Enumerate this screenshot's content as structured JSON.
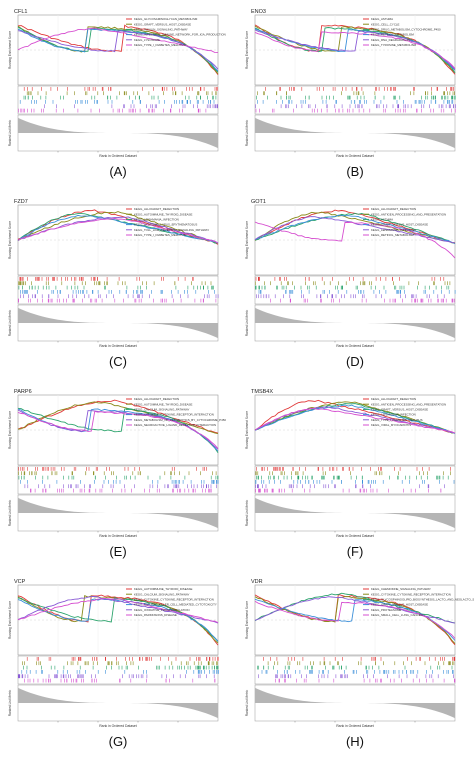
{
  "figure": {
    "panels": [
      {
        "id": "A",
        "letter": "(A)",
        "gene": "CFL1"
      },
      {
        "id": "B",
        "letter": "(B)",
        "gene": "ENO3"
      },
      {
        "id": "C",
        "letter": "(C)",
        "gene": "FZD7"
      },
      {
        "id": "D",
        "letter": "(D)",
        "gene": "GOT1"
      },
      {
        "id": "E",
        "letter": "(E)",
        "gene": "PARP6"
      },
      {
        "id": "F",
        "letter": "(F)",
        "gene": "TMSB4X"
      },
      {
        "id": "G",
        "letter": "(G)",
        "gene": "VCP"
      },
      {
        "id": "H",
        "letter": "(H)",
        "gene": "VDR"
      }
    ],
    "common_labels": {
      "ylabel_top": "Running Enrichment Score",
      "ylabel_bottom": "Ranked List Metric",
      "xlabel": "Rank in Ordered Dataset"
    }
  },
  "chart_data": [
    {
      "type": "line",
      "panel": "A",
      "title": "CFL1",
      "xlabel": "Rank in Ordered Dataset",
      "ylabel": "Running Enrichment Score",
      "grid": true,
      "legend_position": "top-right",
      "series": [
        {
          "name": "KEGG_GLYCOSAMINOGLYCAN_METABOLISM",
          "color": "#e03a3a",
          "shape": "neg"
        },
        {
          "name": "KEGG_GRAFT_VERSUS_HOST_DISEASE",
          "color": "#8a8a1a",
          "shape": "neg"
        },
        {
          "name": "KEGG_INSULIN_SIGNALING_PATHWAY",
          "color": "#2aa36b",
          "shape": "neg"
        },
        {
          "name": "KEGG_INTESTINAL_IMMUNE_NETWORK_FOR_IGA_PRODUCTION",
          "color": "#3b8fd9",
          "shape": "neg"
        },
        {
          "name": "KEGG_LYSOSOME",
          "color": "#8a5bd6",
          "shape": "neg"
        },
        {
          "name": "KEGG_TYPE_I_DIABETES_MELLITUS",
          "color": "#d64fd0",
          "shape": "pos"
        }
      ]
    },
    {
      "type": "line",
      "panel": "B",
      "title": "ENO3",
      "xlabel": "Rank in Ordered Dataset",
      "ylabel": "Running Enrichment Score",
      "grid": true,
      "legend_position": "top-right",
      "series": [
        {
          "name": "KEGG_ASTHMA",
          "color": "#e03a3a",
          "shape": "neg"
        },
        {
          "name": "KEGG_CELL_CYCLE",
          "color": "#8a8a1a",
          "shape": "neg"
        },
        {
          "name": "KEGG_DRUG_METABOLISM_CYTOCHROME_P450",
          "color": "#2aa36b",
          "shape": "neg"
        },
        {
          "name": "KEGG_RETINOL_METABOLISM",
          "color": "#3b8fd9",
          "shape": "neg"
        },
        {
          "name": "KEGG_RNA_DEGRADATION",
          "color": "#8a5bd6",
          "shape": "neg"
        },
        {
          "name": "KEGG_TYROSINE_METABOLISM",
          "color": "#d64fd0",
          "shape": "neg"
        }
      ]
    },
    {
      "type": "line",
      "panel": "C",
      "title": "FZD7",
      "xlabel": "Rank in Ordered Dataset",
      "ylabel": "Running Enrichment Score",
      "grid": true,
      "legend_position": "top-right",
      "series": [
        {
          "name": "KEGG_ALLOGRAFT_REJECTION",
          "color": "#e03a3a",
          "shape": "pos"
        },
        {
          "name": "KEGG_AUTOIMMUNE_THYROID_DISEASE",
          "color": "#8a8a1a",
          "shape": "pos"
        },
        {
          "name": "KEGG_LEISHMANIA_INFECTION",
          "color": "#2aa36b",
          "shape": "pos"
        },
        {
          "name": "KEGG_SYSTEMIC_LUPUS_ERYTHEMATOSUS",
          "color": "#3b8fd9",
          "shape": "pos"
        },
        {
          "name": "KEGG_TOLL_LIKE_RECEPTOR_SIGNALING_PATHWAY",
          "color": "#8a5bd6",
          "shape": "pos"
        },
        {
          "name": "KEGG_TYPE_I_DIABETES_MELLITUS",
          "color": "#d64fd0",
          "shape": "pos"
        }
      ]
    },
    {
      "type": "line",
      "panel": "D",
      "title": "GOT1",
      "xlabel": "Rank in Ordered Dataset",
      "ylabel": "Running Enrichment Score",
      "grid": true,
      "legend_position": "top-right",
      "series": [
        {
          "name": "KEGG_ALLOGRAFT_REJECTION",
          "color": "#e03a3a",
          "shape": "pos"
        },
        {
          "name": "KEGG_ANTIGEN_PROCESSING_AND_PRESENTATION",
          "color": "#8a8a1a",
          "shape": "pos"
        },
        {
          "name": "KEGG_ASTHMA",
          "color": "#2aa36b",
          "shape": "pos"
        },
        {
          "name": "KEGG_GRAFT_VERSUS_HOST_DISEASE",
          "color": "#3b8fd9",
          "shape": "pos"
        },
        {
          "name": "KEGG_LEISHMANIA_INFECTION",
          "color": "#8a5bd6",
          "shape": "pos"
        },
        {
          "name": "KEGG_RETINOL_METABOLISM",
          "color": "#d64fd0",
          "shape": "neg"
        }
      ]
    },
    {
      "type": "line",
      "panel": "E",
      "title": "PARP6",
      "xlabel": "Rank in Ordered Dataset",
      "ylabel": "Running Enrichment Score",
      "grid": true,
      "legend_position": "top-right",
      "series": [
        {
          "name": "KEGG_ALLOGRAFT_REJECTION",
          "color": "#e03a3a",
          "shape": "pos"
        },
        {
          "name": "KEGG_AUTOIMMUNE_THYROID_DISEASE",
          "color": "#8a8a1a",
          "shape": "pos"
        },
        {
          "name": "KEGG_CALCIUM_SIGNALING_PATHWAY",
          "color": "#2aa36b",
          "shape": "neg"
        },
        {
          "name": "KEGG_CYTOKINE_CYTOKINE_RECEPTOR_INTERACTION",
          "color": "#3b8fd9",
          "shape": "neg"
        },
        {
          "name": "KEGG_METABOLISM_OF_XENOBIOTICS_BY_CYTOCHROME_P450",
          "color": "#8a5bd6",
          "shape": "neg"
        },
        {
          "name": "KEGG_NEUROACTIVE_LIGAND_RECEPTOR_INTERACTION",
          "color": "#d64fd0",
          "shape": "neg"
        }
      ]
    },
    {
      "type": "line",
      "panel": "F",
      "title": "TMSB4X",
      "xlabel": "Rank in Ordered Dataset",
      "ylabel": "Running Enrichment Score",
      "grid": true,
      "legend_position": "top-right",
      "series": [
        {
          "name": "KEGG_ALLOGRAFT_REJECTION",
          "color": "#e03a3a",
          "shape": "pos"
        },
        {
          "name": "KEGG_ANTIGEN_PROCESSING_AND_PRESENTATION",
          "color": "#8a8a1a",
          "shape": "pos"
        },
        {
          "name": "KEGG_GRAFT_VERSUS_HOST_DISEASE",
          "color": "#2aa36b",
          "shape": "pos"
        },
        {
          "name": "KEGG_LEISHMANIA_INFECTION",
          "color": "#3b8fd9",
          "shape": "pos"
        },
        {
          "name": "KEGG_TYPE_I_DIABETES_MELLITUS",
          "color": "#8a5bd6",
          "shape": "pos"
        },
        {
          "name": "KEGG_VIRAL_MYOCARDITIS",
          "color": "#d64fd0",
          "shape": "pos"
        }
      ]
    },
    {
      "type": "line",
      "panel": "G",
      "title": "VCP",
      "xlabel": "Rank in Ordered Dataset",
      "ylabel": "Running Enrichment Score",
      "grid": true,
      "legend_position": "top-right",
      "series": [
        {
          "name": "KEGG_AUTOIMMUNE_THYROID_DISEASE",
          "color": "#e03a3a",
          "shape": "neg"
        },
        {
          "name": "KEGG_CALCIUM_SIGNALING_PATHWAY",
          "color": "#8a8a1a",
          "shape": "neg"
        },
        {
          "name": "KEGG_CYTOKINE_CYTOKINE_RECEPTOR_INTERACTION",
          "color": "#2aa36b",
          "shape": "neg"
        },
        {
          "name": "KEGG_NATURAL_KILLER_CELL_MEDIATED_CYTOTOXICITY",
          "color": "#3b8fd9",
          "shape": "neg"
        },
        {
          "name": "KEGG_OXIDATIVE_PHOSPHORYLATION",
          "color": "#8a5bd6",
          "shape": "pos"
        },
        {
          "name": "KEGG_PARKINSONS_DISEASE",
          "color": "#d64fd0",
          "shape": "pos"
        }
      ]
    },
    {
      "type": "line",
      "panel": "H",
      "title": "VDR",
      "xlabel": "Rank in Ordered Dataset",
      "ylabel": "Running Enrichment Score",
      "grid": true,
      "legend_position": "top-right",
      "series": [
        {
          "name": "KEGG_CHEMOKINE_SIGNALING_PATHWAY",
          "color": "#e03a3a",
          "shape": "neg"
        },
        {
          "name": "KEGG_CYTOKINE_CYTOKINE_RECEPTOR_INTERACTION",
          "color": "#8a8a1a",
          "shape": "neg"
        },
        {
          "name": "KEGG_GLYCOSPHINGOLIPID_BIOSYNTHESIS_LACTO_AND_NEOLACTO_SERIES",
          "color": "#2aa36b",
          "shape": "pos"
        },
        {
          "name": "KEGG_GRAFT_VERSUS_HOST_DISEASE",
          "color": "#3b8fd9",
          "shape": "neg"
        },
        {
          "name": "KEGG_PROTEASOME",
          "color": "#8a5bd6",
          "shape": "pos"
        },
        {
          "name": "KEGG_SMALL_CELL_LUNG_CANCER",
          "color": "#d64fd0",
          "shape": "neg"
        }
      ]
    }
  ]
}
